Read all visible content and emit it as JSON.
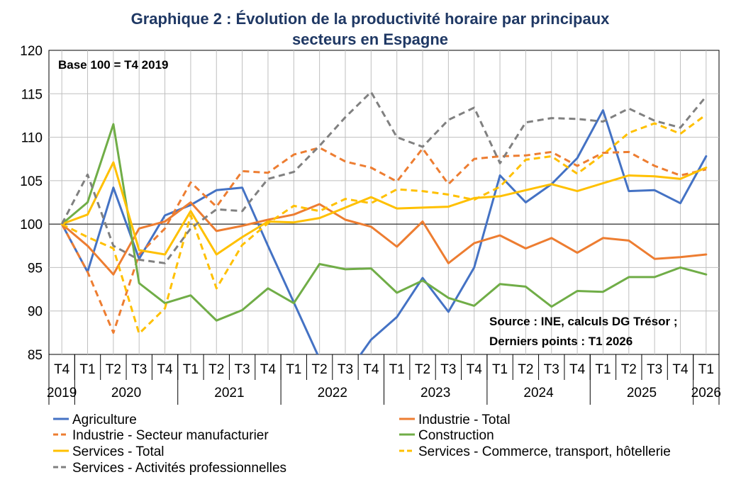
{
  "chart_data": {
    "type": "line",
    "title_line1": "Graphique 2 : Évolution de la productivité horaire par principaux",
    "title_line2": "secteurs en Espagne",
    "annotation_base": "Base 100 = T4 2019",
    "annotation_source": "Source : INE, calculs DG Trésor ;",
    "annotation_last": "Derniers points : T1 2026",
    "ylim": [
      85,
      120
    ],
    "yticks": [
      "85",
      "90",
      "95",
      "100",
      "105",
      "110",
      "115",
      "120"
    ],
    "reference_line": 100,
    "quarters": [
      "T4",
      "T1",
      "T2",
      "T3",
      "T4",
      "T1",
      "T2",
      "T3",
      "T4",
      "T1",
      "T2",
      "T3",
      "T4",
      "T1",
      "T2",
      "T3",
      "T4",
      "T1",
      "T2",
      "T3",
      "T4",
      "T1",
      "T2",
      "T3",
      "T4",
      "T1"
    ],
    "years": [
      {
        "label": "2019",
        "start": 0,
        "end": 0
      },
      {
        "label": "2020",
        "start": 1,
        "end": 4
      },
      {
        "label": "2021",
        "start": 5,
        "end": 8
      },
      {
        "label": "2022",
        "start": 9,
        "end": 12
      },
      {
        "label": "2023",
        "start": 13,
        "end": 16
      },
      {
        "label": "2024",
        "start": 17,
        "end": 20
      },
      {
        "label": "2025",
        "start": 21,
        "end": 24
      },
      {
        "label": "2026",
        "start": 25,
        "end": 25
      }
    ],
    "series": [
      {
        "name": "Agriculture",
        "color": "#4472c4",
        "dash": false,
        "values": [
          100,
          94.5,
          104.2,
          96.0,
          101.0,
          102.2,
          103.9,
          104.2,
          97.5,
          91.0,
          84.5,
          82.5,
          86.7,
          89.3,
          93.8,
          89.9,
          95.0,
          105.6,
          102.5,
          104.6,
          107.6,
          113.1,
          103.8,
          103.9,
          102.4,
          107.8
        ]
      },
      {
        "name": "Industrie - Total",
        "color": "#ed7d31",
        "dash": false,
        "values": [
          100,
          97.5,
          94.2,
          99.5,
          100.3,
          102.5,
          99.2,
          99.8,
          100.5,
          101.1,
          102.3,
          100.5,
          99.7,
          97.4,
          100.3,
          95.5,
          97.8,
          98.7,
          97.2,
          98.4,
          96.7,
          98.4,
          98.1,
          96.0,
          96.2,
          96.5
        ]
      },
      {
        "name": "Industrie - Secteur manufacturier",
        "color": "#ed7d31",
        "dash": true,
        "values": [
          100,
          94.5,
          87.5,
          96.5,
          99.5,
          104.8,
          102.0,
          106.1,
          105.9,
          108.0,
          108.8,
          107.2,
          106.5,
          104.9,
          108.7,
          104.6,
          107.5,
          107.8,
          107.9,
          108.3,
          106.7,
          108.2,
          108.3,
          106.7,
          105.6,
          106.3
        ]
      },
      {
        "name": "Construction",
        "color": "#70ad47",
        "dash": false,
        "values": [
          100,
          102.5,
          111.5,
          93.2,
          90.9,
          91.8,
          88.9,
          90.1,
          92.6,
          90.9,
          95.4,
          94.8,
          94.9,
          92.1,
          93.5,
          91.5,
          90.6,
          93.1,
          92.8,
          90.5,
          92.3,
          92.2,
          93.9,
          93.9,
          95.0,
          94.2
        ]
      },
      {
        "name": "Services - Total",
        "color": "#ffc000",
        "dash": false,
        "values": [
          100,
          101.1,
          107.1,
          97.0,
          96.5,
          101.5,
          96.5,
          98.5,
          100.3,
          100.2,
          100.7,
          101.9,
          103.1,
          101.8,
          101.9,
          102.0,
          103.0,
          103.2,
          103.9,
          104.6,
          103.8,
          104.7,
          105.6,
          105.5,
          105.2,
          106.5
        ]
      },
      {
        "name": "Services - Commerce, transport, hôtellerie",
        "color": "#ffc000",
        "dash": true,
        "values": [
          100,
          98.5,
          97.2,
          87.4,
          90.3,
          101.0,
          92.6,
          97.6,
          100.1,
          102.1,
          101.5,
          102.9,
          102.4,
          104.0,
          103.8,
          103.4,
          102.8,
          104.3,
          107.4,
          107.8,
          105.8,
          108.0,
          110.5,
          111.6,
          110.4,
          112.6
        ]
      },
      {
        "name": "Services - Activités professionnelles",
        "color": "#808080",
        "dash": true,
        "values": [
          100,
          105.7,
          97.5,
          95.9,
          95.5,
          99.5,
          101.7,
          101.5,
          105.2,
          106.0,
          109.0,
          112.3,
          115.2,
          110.0,
          108.9,
          112.0,
          113.4,
          107.0,
          111.7,
          112.2,
          112.1,
          111.8,
          113.3,
          111.9,
          111.1,
          114.7
        ]
      }
    ]
  }
}
